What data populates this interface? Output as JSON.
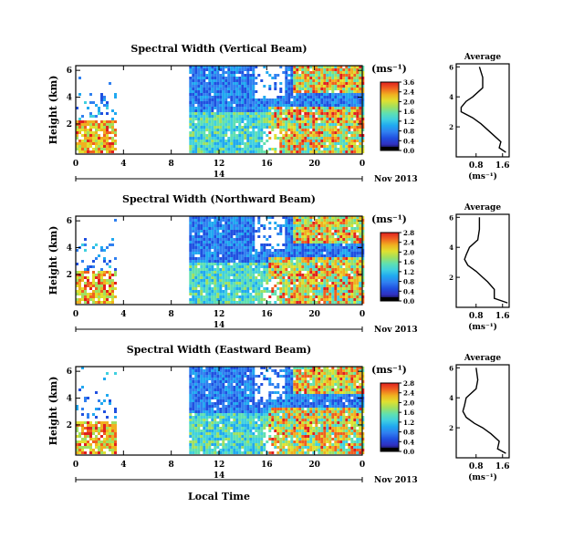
{
  "chart_data": {
    "type": "heatmap",
    "colormap": [
      "#000000",
      "#3030c0",
      "#2050e0",
      "#3080f0",
      "#20a8f0",
      "#40d0e0",
      "#60e0b0",
      "#a0e060",
      "#e0e030",
      "#f0b020",
      "#f06020",
      "#e02020"
    ],
    "panels": [
      {
        "title": "Spectral Width (Vertical Beam)",
        "ylabel": "Height (km)",
        "yticks": [
          "6",
          "4",
          "2"
        ],
        "xticks": [
          "0",
          "4",
          "8",
          "12",
          "16",
          "20",
          "0"
        ],
        "day_label": "14",
        "date_label": "Nov 2013",
        "colorbar_unit": "(ms⁻¹)",
        "colorbar_ticks": [
          "3.6",
          "2.4",
          "2.0",
          "1.6",
          "1.2",
          "0.8",
          "0.4",
          "0.0"
        ],
        "profile": {
          "title": "Average",
          "xticks": [
            "0.8",
            "1.6"
          ],
          "yticks": [
            "6",
            "4",
            "2"
          ],
          "xlabel": "(ms⁻¹)",
          "x": [
            0.9,
            1.0,
            1.0,
            0.7,
            0.5,
            0.35,
            0.35,
            0.7,
            0.95,
            1.25,
            1.55,
            1.5,
            1.7
          ],
          "y": [
            6.0,
            5.3,
            4.6,
            4.0,
            3.7,
            3.3,
            3.0,
            2.6,
            2.2,
            1.6,
            1.0,
            0.6,
            0.3
          ]
        }
      },
      {
        "title": "Spectral Width (Northward Beam)",
        "ylabel": "Height (km)",
        "yticks": [
          "6",
          "4",
          "2"
        ],
        "xticks": [
          "0",
          "4",
          "8",
          "12",
          "16",
          "20",
          "0"
        ],
        "day_label": "14",
        "date_label": "Nov 2013",
        "colorbar_unit": "(ms⁻¹)",
        "colorbar_ticks": [
          "2.8",
          "2.4",
          "2.0",
          "1.6",
          "1.2",
          "0.8",
          "0.4",
          "0.0"
        ],
        "profile": {
          "title": "Average",
          "xticks": [
            "0.8",
            "1.6"
          ],
          "yticks": [
            "6",
            "4",
            "2"
          ],
          "xlabel": "(ms⁻¹)",
          "x": [
            0.9,
            0.9,
            0.85,
            0.6,
            0.5,
            0.45,
            0.55,
            0.8,
            1.0,
            1.15,
            1.35,
            1.35,
            1.75
          ],
          "y": [
            6.0,
            5.2,
            4.5,
            4.0,
            3.5,
            3.2,
            2.8,
            2.4,
            2.0,
            1.7,
            1.2,
            0.6,
            0.3
          ]
        }
      },
      {
        "title": "Spectral Width (Eastward Beam)",
        "ylabel": "Height (km)",
        "yticks": [
          "6",
          "4",
          "2"
        ],
        "xticks": [
          "0",
          "4",
          "8",
          "12",
          "16",
          "20",
          "0"
        ],
        "day_label": "14",
        "date_label": "Nov 2013",
        "colorbar_unit": "(ms⁻¹)",
        "colorbar_ticks": [
          "2.8",
          "2.4",
          "2.0",
          "1.6",
          "1.2",
          "0.8",
          "0.4",
          "0.0"
        ],
        "profile": {
          "title": "Average",
          "xticks": [
            "0.8",
            "1.6"
          ],
          "yticks": [
            "6",
            "4",
            "2"
          ],
          "xlabel": "(ms⁻¹)",
          "x": [
            0.8,
            0.85,
            0.8,
            0.5,
            0.45,
            0.4,
            0.5,
            0.75,
            1.0,
            1.25,
            1.5,
            1.45,
            1.7
          ],
          "y": [
            6.0,
            5.2,
            4.6,
            4.0,
            3.5,
            3.1,
            2.7,
            2.3,
            2.0,
            1.6,
            1.1,
            0.6,
            0.3
          ]
        }
      }
    ],
    "xlabel": "Local Time"
  }
}
